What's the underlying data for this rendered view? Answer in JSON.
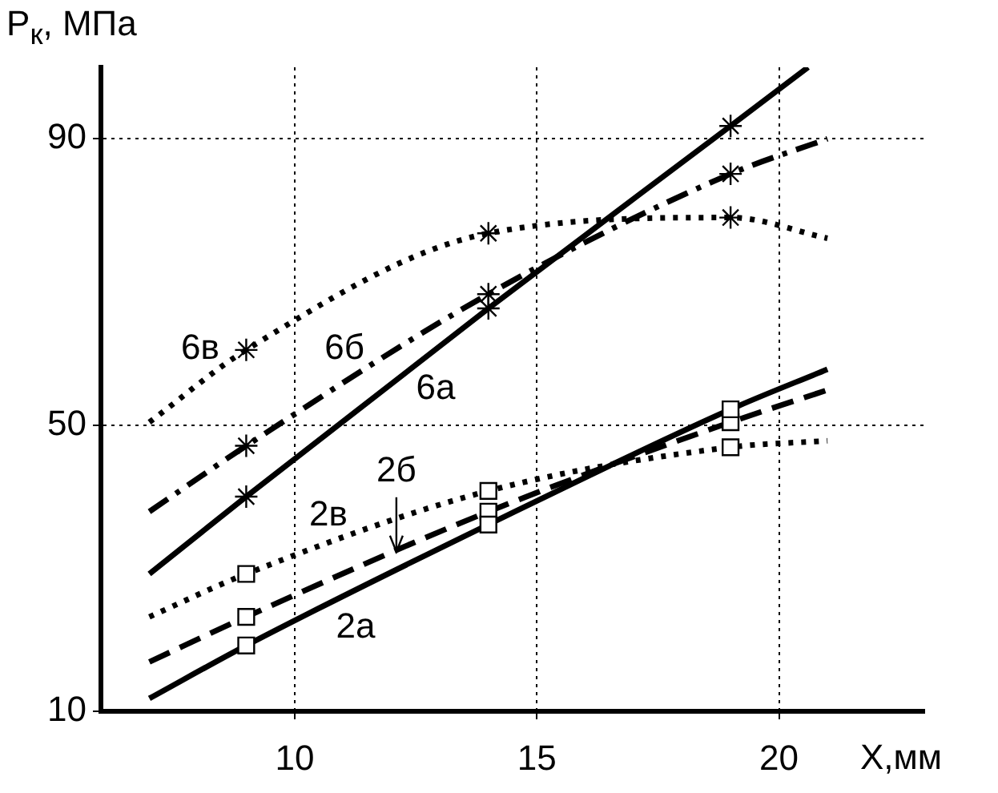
{
  "chart_data": {
    "type": "line",
    "xlabel": "X,мм",
    "ylabel": "P$_{к}$, МПа",
    "xlim": [
      6,
      23
    ],
    "xticks": [
      10,
      15,
      20
    ],
    "ylim": [
      10,
      100
    ],
    "yticks": [
      10,
      50,
      90
    ],
    "grid": true,
    "legend": false,
    "series": [
      {
        "color": "#000000",
        "line_style": "solid",
        "marker": "cross",
        "x": [
          7,
          9,
          14,
          19,
          20.6
        ],
        "values": [
          29.2,
          40,
          66.3,
          91.8,
          100
        ]
      },
      {
        "color": "#000000",
        "line_style": "dashdot",
        "marker": "cross",
        "x": [
          7,
          9,
          14,
          19,
          21
        ],
        "values": [
          37.9,
          47.1,
          68.3,
          85.1,
          90
        ]
      },
      {
        "color": "#000000",
        "line_style": "dotted",
        "marker": "cross",
        "x": [
          7,
          9,
          14,
          19,
          21
        ],
        "values": [
          50.4,
          60.5,
          76.8,
          79,
          76.1
        ]
      },
      {
        "color": "#000000",
        "line_style": "solid",
        "marker": "square",
        "x": [
          7,
          9,
          14,
          19,
          21
        ],
        "values": [
          11.8,
          19.2,
          36.1,
          52.2,
          57.8
        ]
      },
      {
        "color": "#000000",
        "line_style": "dashed",
        "marker": "square",
        "x": [
          7,
          9,
          14,
          19,
          21
        ],
        "values": [
          16.9,
          23.2,
          37.9,
          50.4,
          54.9
        ]
      },
      {
        "color": "#000000",
        "line_style": "dotted",
        "marker": "square",
        "x": [
          7,
          9,
          14,
          19,
          21
        ],
        "values": [
          23.2,
          29.2,
          40.8,
          46.9,
          47.8
        ]
      }
    ],
    "annotations": [
      "6в",
      "6б",
      "6а",
      {
        "text": "2б",
        "x": 12.1,
        "y": 32.3
      },
      "2в",
      "2а"
    ]
  }
}
